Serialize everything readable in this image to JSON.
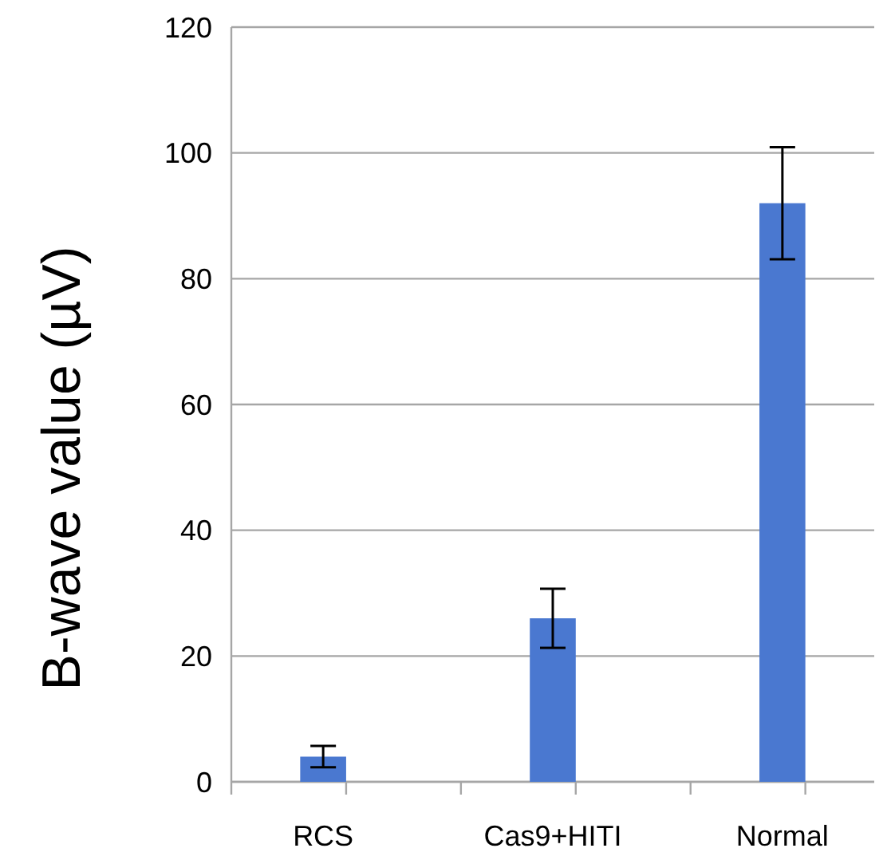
{
  "chart_data": {
    "type": "bar",
    "ylabel": "B-wave value (µV)",
    "categories": [
      "RCS",
      null,
      "Cas9+HITI",
      null,
      "Normal"
    ],
    "values": [
      4,
      null,
      26,
      null,
      92
    ],
    "errors": [
      1.7,
      null,
      4.7,
      null,
      8.9
    ],
    "color": "#4a78d0",
    "ylim": [
      0,
      120
    ],
    "yticks": [
      0,
      20,
      40,
      60,
      80,
      100,
      120
    ],
    "grid": "y"
  }
}
